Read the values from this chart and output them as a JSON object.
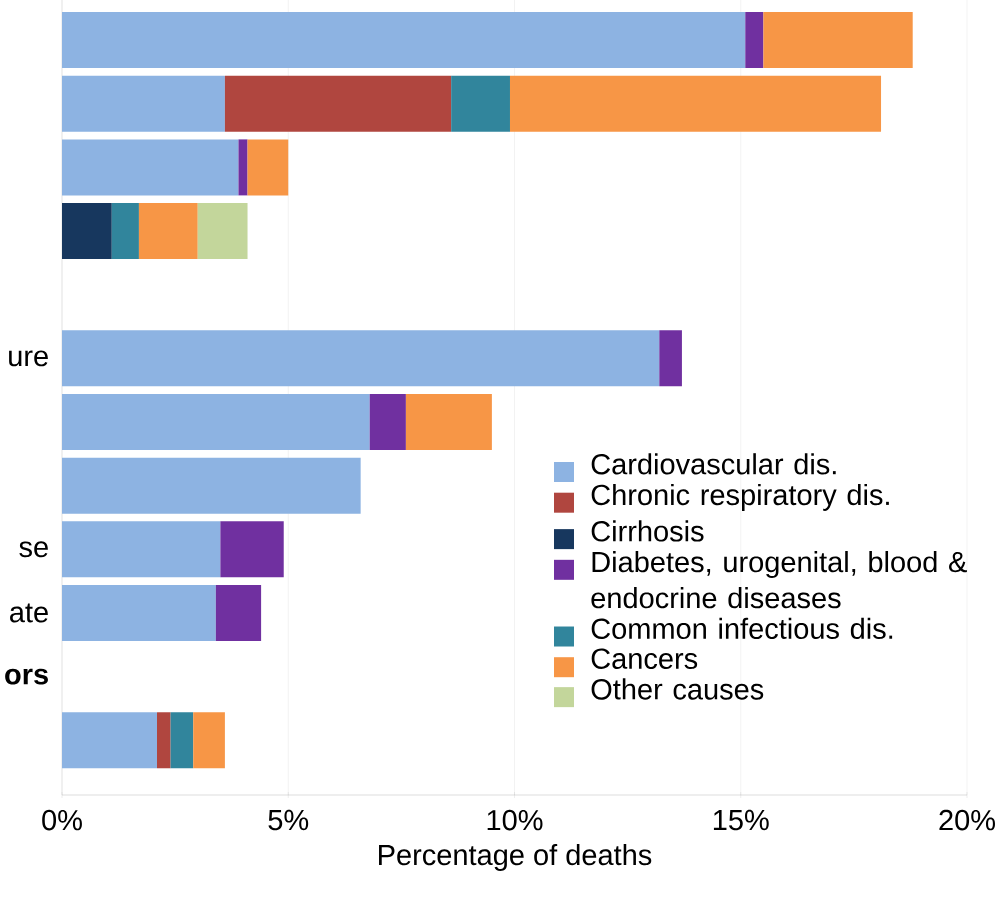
{
  "chart_data": {
    "type": "bar",
    "orientation": "horizontal",
    "stacked": true,
    "xlabel": "Percentage of deaths",
    "categories": [
      null,
      null,
      null,
      null,
      null,
      "ure",
      null,
      null,
      "se",
      "ate",
      "ors",
      null
    ],
    "series": [
      {
        "name": "Cardiovascular dis.",
        "color": "#8db3e2",
        "values": [
          15.1,
          3.6,
          3.9,
          null,
          null,
          13.2,
          6.8,
          6.6,
          3.5,
          3.4,
          null,
          2.1
        ]
      },
      {
        "name": "Chronic respiratory dis.",
        "color": "#b0463f",
        "values": [
          null,
          5.0,
          null,
          null,
          null,
          null,
          null,
          null,
          null,
          null,
          null,
          0.3
        ]
      },
      {
        "name": "Cirrhosis",
        "color": "#17375e",
        "values": [
          null,
          null,
          null,
          1.1,
          null,
          null,
          null,
          null,
          null,
          null,
          null,
          null
        ]
      },
      {
        "name": "Diabetes, urogenital, blood & endocrine diseases",
        "color": "#7030a0",
        "values": [
          0.4,
          null,
          0.2,
          null,
          null,
          0.5,
          0.8,
          null,
          1.4,
          1.0,
          null,
          null
        ]
      },
      {
        "name": "Common infectious dis.",
        "color": "#31859c",
        "values": [
          null,
          1.3,
          null,
          0.6,
          null,
          null,
          null,
          null,
          null,
          null,
          null,
          0.5
        ]
      },
      {
        "name": "Cancers",
        "color": "#f79646",
        "values": [
          3.3,
          8.2,
          0.9,
          1.3,
          null,
          null,
          1.9,
          null,
          null,
          null,
          null,
          0.7
        ]
      },
      {
        "name": "Other causes",
        "color": "#c3d69b",
        "values": [
          null,
          null,
          null,
          1.1,
          null,
          null,
          null,
          null,
          null,
          null,
          null,
          null
        ]
      }
    ],
    "xlim": [
      0,
      20
    ],
    "xticks": [
      {
        "value": 0,
        "label": "0%"
      },
      {
        "value": 5,
        "label": "5%"
      },
      {
        "value": 10,
        "label": "10%"
      },
      {
        "value": 15,
        "label": "15%"
      },
      {
        "value": 20,
        "label": "20%"
      }
    ],
    "grid": "x",
    "legend": "bottom right"
  }
}
